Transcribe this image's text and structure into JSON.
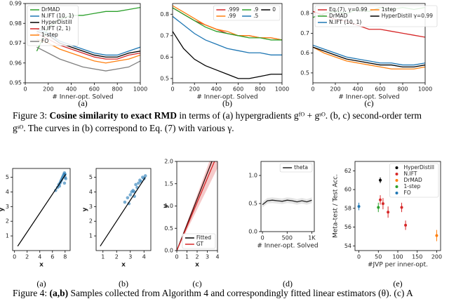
{
  "chart_data": [
    {
      "type": "line",
      "label": "(a)",
      "xlabel": "# Inner-opt. Solved",
      "x": [
        0,
        100,
        200,
        300,
        400,
        500,
        600,
        700,
        800,
        900,
        1000
      ],
      "xlim": [
        0,
        1000
      ],
      "ylim": [
        0.95,
        0.99
      ],
      "xticks": [
        0,
        200,
        400,
        600,
        800,
        1000
      ],
      "yticks": [
        0.95,
        0.96,
        0.97,
        0.98,
        0.99
      ],
      "legend": "upper left",
      "legend_cols": 1,
      "series": [
        {
          "name": "DrMAD",
          "color": "#2ca02c",
          "values": [
            null,
            0.966,
            0.978,
            0.982,
            0.984,
            0.984,
            0.985,
            0.986,
            0.986,
            0.987,
            0.988
          ]
        },
        {
          "name": "N.IFT (10, 1)",
          "color": "#1f77b4",
          "values": [
            null,
            0.977,
            0.975,
            0.971,
            0.969,
            0.967,
            0.965,
            0.964,
            0.964,
            0.966,
            0.968
          ]
        },
        {
          "name": "HyperDistill",
          "color": "#000000",
          "values": [
            null,
            0.976,
            0.974,
            0.97,
            0.968,
            0.966,
            0.964,
            0.963,
            0.963,
            0.965,
            0.966
          ]
        },
        {
          "name": "N.IFT (2, 1)",
          "color": "#d62728",
          "values": [
            null,
            0.975,
            0.972,
            0.969,
            0.967,
            0.965,
            0.963,
            0.962,
            0.962,
            0.964,
            0.965
          ]
        },
        {
          "name": "1-step",
          "color": "#ff7f0e",
          "values": [
            null,
            0.972,
            0.97,
            0.967,
            0.965,
            0.963,
            0.961,
            0.96,
            0.961,
            0.962,
            0.964
          ]
        },
        {
          "name": "FO",
          "color": "#7f7f7f",
          "values": [
            null,
            0.968,
            0.965,
            0.962,
            0.96,
            0.958,
            0.957,
            0.956,
            0.957,
            0.958,
            0.961
          ]
        }
      ]
    },
    {
      "type": "line",
      "label": "(b)",
      "xlabel": "# Inner-opt. Solved",
      "x": [
        0,
        100,
        200,
        300,
        400,
        500,
        600,
        700,
        800,
        900,
        1000
      ],
      "xlim": [
        0,
        1000
      ],
      "ylim": [
        0.48,
        0.85
      ],
      "xticks": [
        0,
        200,
        400,
        600,
        800,
        1000
      ],
      "yticks": [
        0.5,
        0.6,
        0.7,
        0.8
      ],
      "legend": "upper right",
      "legend_cols": 3,
      "series": [
        {
          "name": ".999",
          "color": "#d62728",
          "values": [
            0.83,
            0.8,
            0.77,
            0.75,
            0.73,
            0.71,
            0.7,
            0.7,
            0.69,
            0.69,
            0.68
          ]
        },
        {
          "name": ".99",
          "color": "#ff7f0e",
          "values": [
            0.84,
            0.81,
            0.78,
            0.75,
            0.73,
            0.72,
            0.7,
            0.7,
            0.69,
            0.69,
            0.68
          ]
        },
        {
          "name": ".9",
          "color": "#2ca02c",
          "values": [
            0.83,
            0.8,
            0.77,
            0.74,
            0.72,
            0.71,
            0.7,
            0.69,
            0.69,
            0.68,
            0.68
          ]
        },
        {
          "name": ".5",
          "color": "#1f77b4",
          "values": [
            0.79,
            0.75,
            0.71,
            0.68,
            0.66,
            0.64,
            0.63,
            0.62,
            0.62,
            0.61,
            0.61
          ]
        },
        {
          "name": "0",
          "color": "#000000",
          "values": [
            0.72,
            0.64,
            0.59,
            0.56,
            0.54,
            0.52,
            0.5,
            0.5,
            0.51,
            0.52,
            0.52
          ]
        }
      ]
    },
    {
      "type": "line",
      "label": "(c)",
      "xlabel": "# Inner-opt. Solved",
      "x": [
        0,
        100,
        200,
        300,
        400,
        500,
        600,
        700,
        800,
        900,
        1000
      ],
      "xlim": [
        0,
        1000
      ],
      "ylim": [
        0.45,
        0.85
      ],
      "xticks": [
        0,
        200,
        400,
        600,
        800,
        1000
      ],
      "yticks": [
        0.5,
        0.6,
        0.7,
        0.8
      ],
      "legend": "upper left",
      "legend_cols": 2,
      "series": [
        {
          "name": "Eq.(7), γ=0.99",
          "color": "#d62728",
          "values": [
            0.81,
            0.79,
            0.77,
            0.76,
            0.74,
            0.72,
            0.72,
            0.71,
            0.7,
            0.69,
            0.68
          ]
        },
        {
          "name": "DrMAD",
          "color": "#2ca02c",
          "values": [
            0.78,
            0.8,
            0.81,
            0.8,
            0.82,
            0.81,
            0.83,
            0.82,
            0.83,
            0.82,
            0.83
          ]
        },
        {
          "name": "N.IFT (10, 1)",
          "color": "#1f77b4",
          "values": [
            0.64,
            0.62,
            0.6,
            0.58,
            0.57,
            0.56,
            0.55,
            0.55,
            0.54,
            0.54,
            0.55
          ]
        },
        {
          "name": "1step",
          "color": "#ff7f0e",
          "values": [
            0.63,
            0.6,
            0.58,
            0.56,
            0.55,
            0.54,
            0.53,
            0.52,
            0.52,
            0.52,
            0.53
          ]
        },
        {
          "name": "HyperDistill γ=0.99",
          "color": "#000000",
          "values": [
            0.63,
            0.61,
            0.59,
            0.57,
            0.56,
            0.55,
            0.54,
            0.54,
            0.53,
            0.53,
            0.54
          ]
        }
      ]
    },
    {
      "type": "scatter",
      "label": "(a)",
      "xlabel": "x",
      "ylabel": "y",
      "xlim": [
        -0.3,
        8.8
      ],
      "ylim": [
        0,
        5.6
      ],
      "xticks": [
        0,
        2,
        4,
        6,
        8
      ],
      "yticks": [
        1,
        2,
        3,
        4,
        5
      ],
      "alpha": 0.6,
      "series": [
        {
          "color": "#1f77b4",
          "x": [
            6.8,
            7.0,
            7.2,
            7.3,
            7.5,
            7.6,
            7.7,
            7.8,
            7.9,
            8.0,
            8.1,
            7.4,
            7.9,
            8.0,
            6.5,
            7.1
          ],
          "values": [
            4.3,
            4.5,
            4.6,
            4.7,
            4.9,
            5.0,
            5.1,
            5.2,
            5.3,
            5.0,
            4.9,
            4.8,
            4.6,
            5.2,
            4.1,
            4.4
          ]
        }
      ],
      "fit": {
        "color": "#000000",
        "x": [
          0.5,
          8.1
        ],
        "values": [
          0.3,
          5.2
        ]
      }
    },
    {
      "type": "scatter",
      "label": "(b)",
      "xlabel": "x",
      "ylabel": "y",
      "xlim": [
        0.5,
        4.5
      ],
      "ylim": [
        0,
        5.6
      ],
      "xticks": [
        1,
        2,
        3,
        4
      ],
      "yticks": [
        1,
        2,
        3,
        4,
        5
      ],
      "alpha": 0.6,
      "series": [
        {
          "color": "#1f77b4",
          "x": [
            2.6,
            2.8,
            3.0,
            3.1,
            3.2,
            3.3,
            3.4,
            3.5,
            3.6,
            3.7,
            3.8,
            3.9,
            4.0,
            4.1,
            2.9,
            3.3
          ],
          "values": [
            3.3,
            3.6,
            3.8,
            4.0,
            4.1,
            4.0,
            4.5,
            4.3,
            4.6,
            4.8,
            4.7,
            5.0,
            4.9,
            5.1,
            3.2,
            3.7
          ]
        }
      ],
      "fit": {
        "color": "#000000",
        "x": [
          0.8,
          4.1
        ],
        "values": [
          0.3,
          5.0
        ]
      }
    },
    {
      "type": "line",
      "label": "(c)",
      "xlabel": "x",
      "ylabel": "y",
      "xlim": [
        0,
        4
      ],
      "ylim": [
        0,
        2
      ],
      "xticks": [
        0,
        1,
        2,
        3,
        4
      ],
      "yticks": [
        {
          "value": 0,
          "label": "0.0"
        },
        0.5,
        {
          "value": 1,
          "label": "1.0"
        },
        1.5,
        {
          "value": 2,
          "label": "2.0"
        }
      ],
      "legend": "lower right",
      "legend_cols": 1,
      "series": [
        {
          "name": "Fitted",
          "color": "#000000",
          "x": [
            0,
            4
          ],
          "values": [
            0,
            2.32
          ]
        },
        {
          "name": "GT",
          "color": "#d62728",
          "x": [
            0,
            4
          ],
          "values": [
            0,
            2.16
          ],
          "low": [
            0,
            1.85
          ],
          "high": [
            0,
            2.5
          ]
        }
      ]
    },
    {
      "type": "line",
      "label": "(d)",
      "xlabel": "# Inner-opt. Solved",
      "x": [
        0,
        100,
        200,
        300,
        400,
        500,
        600,
        700,
        800,
        900,
        1000
      ],
      "xlim": [
        -30,
        1050
      ],
      "ylim": [
        0,
        1.25
      ],
      "xticks": [
        0,
        500,
        {
          "value": 1000,
          "label": "1K"
        }
      ],
      "yticks": [
        {
          "value": 0,
          "label": "0.0"
        },
        0.5,
        {
          "value": 1,
          "label": "1.0"
        }
      ],
      "legend": "upper right",
      "legend_cols": 1,
      "series": [
        {
          "name": "theta",
          "color": "#222222",
          "values": [
            0.48,
            0.55,
            0.56,
            0.55,
            0.54,
            0.56,
            0.55,
            0.53,
            0.55,
            0.53,
            0.56
          ],
          "low": [
            0.43,
            0.5,
            0.51,
            0.5,
            0.49,
            0.51,
            0.5,
            0.48,
            0.5,
            0.48,
            0.51
          ],
          "high": [
            0.53,
            0.6,
            0.61,
            0.6,
            0.59,
            0.61,
            0.6,
            0.58,
            0.6,
            0.58,
            0.61
          ]
        }
      ]
    },
    {
      "type": "scatter",
      "label": "(e)",
      "xlabel": "#JVP per inner-opt.",
      "ylabel": "Meta-test / Test Acc.",
      "xlim": [
        -10,
        210
      ],
      "ylim": [
        53.5,
        63
      ],
      "xticks": [
        0,
        50,
        100,
        150,
        200
      ],
      "yticks": [
        54,
        56,
        58,
        60,
        62
      ],
      "legend": "upper right",
      "legend_cols": 1,
      "alpha": 1,
      "series": [
        {
          "name": "HyperDistill",
          "color": "#000000",
          "x": [
            55
          ],
          "values": [
            61.0
          ],
          "err": [
            0.3
          ]
        },
        {
          "name": "N.IFT",
          "color": "#d62728",
          "x": [
            55,
            62,
            75,
            110,
            120
          ],
          "values": [
            58.9,
            58.5,
            57.6,
            58.1,
            56.2
          ],
          "err": [
            0.5,
            0.6,
            0.6,
            0.5,
            0.5
          ]
        },
        {
          "name": "DrMAD",
          "color": "#ff7f0e",
          "x": [
            200
          ],
          "values": [
            55.1
          ],
          "err": [
            0.6
          ]
        },
        {
          "name": "1-step",
          "color": "#2ca02c",
          "x": [
            50
          ],
          "values": [
            58.1
          ],
          "err": [
            0.5
          ]
        },
        {
          "name": "FO",
          "color": "#1f77b4",
          "x": [
            0
          ],
          "values": [
            58.2
          ],
          "err": [
            0.4
          ]
        }
      ]
    }
  ],
  "captions": [
    {
      "label": "Figure 3:",
      "emph": "Cosine similarity to exact RMD",
      "lines": [
        "in terms of (a) hypergradients gᶠᴼ + gˢᴼ. (b, c) second-order term",
        "gˢᴼ. The curves in (b) correspond to Eq. (7) with various γ."
      ]
    },
    {
      "label": "Figure 4:",
      "emph": "(a,b)",
      "lines": [
        "Samples collected from Algorithm 4 and correspondingly fitted linear estimators (θ). (c) A"
      ]
    }
  ]
}
